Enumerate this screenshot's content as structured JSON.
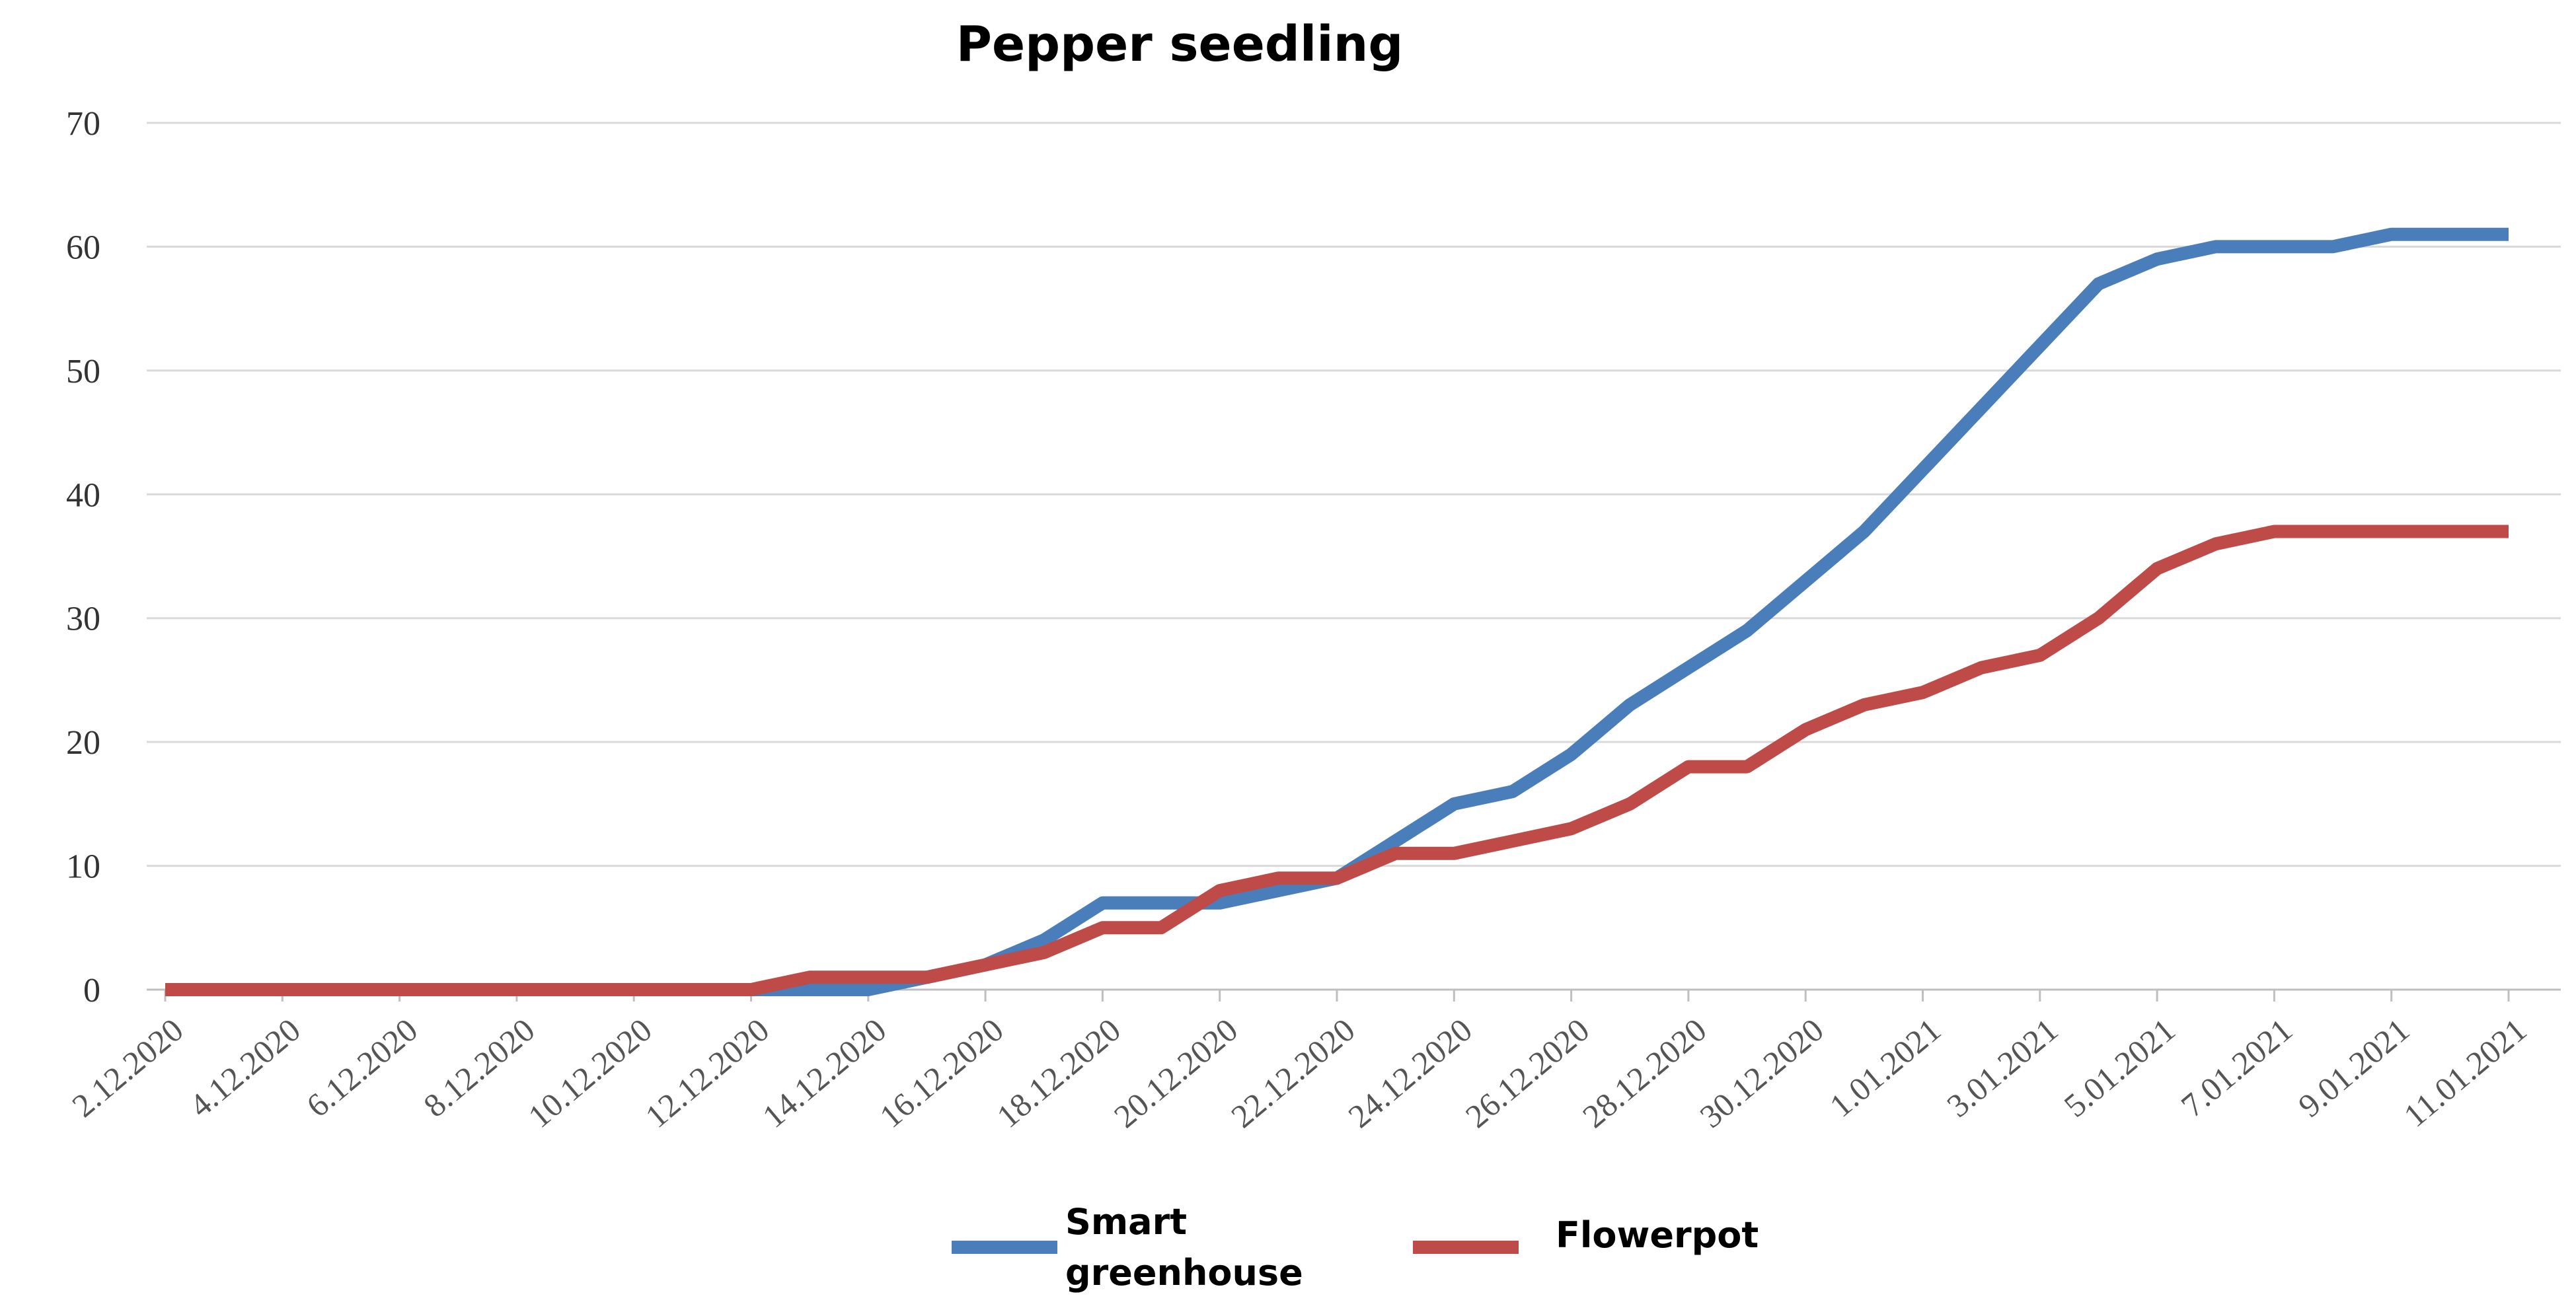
{
  "chart_data": {
    "type": "line",
    "title": "Pepper seedling",
    "xlabel": "",
    "ylabel": "",
    "ylim": [
      0,
      70
    ],
    "yticks": [
      0,
      10,
      20,
      30,
      40,
      50,
      60,
      70
    ],
    "grid": true,
    "legend_position": "bottom",
    "x_tick_labels": [
      "2.12.2020",
      "4.12.2020",
      "6.12.2020",
      "8.12.2020",
      "10.12.2020",
      "12.12.2020",
      "14.12.2020",
      "16.12.2020",
      "18.12.2020",
      "20.12.2020",
      "22.12.2020",
      "24.12.2020",
      "26.12.2020",
      "28.12.2020",
      "30.12.2020",
      "1.01.2021",
      "3.01.2021",
      "5.01.2021",
      "7.01.2021",
      "9.01.2021",
      "11.01.2021"
    ],
    "x": [
      "2.12.2020",
      "3.12.2020",
      "4.12.2020",
      "5.12.2020",
      "6.12.2020",
      "7.12.2020",
      "8.12.2020",
      "9.12.2020",
      "10.12.2020",
      "11.12.2020",
      "12.12.2020",
      "13.12.2020",
      "14.12.2020",
      "15.12.2020",
      "16.12.2020",
      "17.12.2020",
      "18.12.2020",
      "19.12.2020",
      "20.12.2020",
      "21.12.2020",
      "22.12.2020",
      "23.12.2020",
      "24.12.2020",
      "25.12.2020",
      "26.12.2020",
      "27.12.2020",
      "28.12.2020",
      "29.12.2020",
      "30.12.2020",
      "31.12.2020",
      "1.01.2021",
      "2.01.2021",
      "3.01.2021",
      "4.01.2021",
      "5.01.2021",
      "6.01.2021",
      "7.01.2021",
      "8.01.2021",
      "9.01.2021",
      "10.01.2021",
      "11.01.2021"
    ],
    "series": [
      {
        "name": "Smart greenhouse",
        "color": "#4a7ebb",
        "values": [
          0,
          0,
          0,
          0,
          0,
          0,
          0,
          0,
          0,
          0,
          0,
          0,
          0,
          1,
          2,
          4,
          7,
          7,
          7,
          8,
          9,
          12,
          15,
          16,
          19,
          23,
          26,
          29,
          33,
          37,
          42,
          47,
          52,
          57,
          59,
          60,
          60,
          60,
          61,
          61,
          61
        ]
      },
      {
        "name": "Flowerpot",
        "color": "#be4b48",
        "values": [
          0,
          0,
          0,
          0,
          0,
          0,
          0,
          0,
          0,
          0,
          0,
          1,
          1,
          1,
          2,
          3,
          5,
          5,
          8,
          9,
          9,
          11,
          11,
          12,
          13,
          15,
          18,
          18,
          21,
          23,
          24,
          26,
          27,
          30,
          34,
          36,
          37,
          37,
          37,
          37,
          37
        ]
      }
    ]
  },
  "legend": {
    "items": [
      {
        "label_line1": "Smart",
        "label_line2": "greenhouse",
        "icon": "line-swatch"
      },
      {
        "label": "Flowerpot",
        "icon": "line-swatch"
      }
    ]
  }
}
